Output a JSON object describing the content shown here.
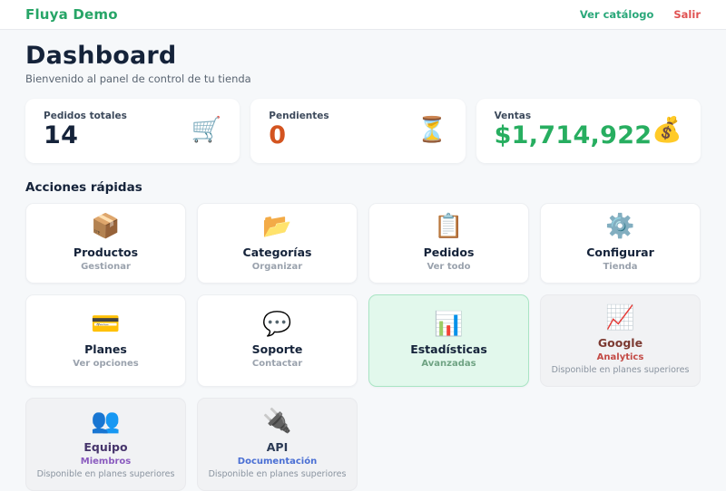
{
  "header": {
    "brand": "Fluya Demo",
    "catalog_label": "Ver catálogo",
    "logout_label": "Salir"
  },
  "page": {
    "title": "Dashboard",
    "subtitle": "Bienvenido al panel de control de tu tienda"
  },
  "stats": [
    {
      "label": "Pedidos totales",
      "value": "14",
      "value_color": "#15233a",
      "icon": "shopping-cart-icon",
      "emoji": "🛒"
    },
    {
      "label": "Pendientes",
      "value": "0",
      "value_color": "#d35420",
      "icon": "hourglass-icon",
      "emoji": "⏳"
    },
    {
      "label": "Ventas",
      "value": "$1,714,922",
      "value_color": "#27ae60",
      "icon": "money-bag-icon",
      "emoji": "💰"
    }
  ],
  "quick_actions": {
    "heading": "Acciones rápidas",
    "cards": [
      {
        "title": "Productos",
        "subtitle": "Gestionar",
        "icon": "package-icon",
        "emoji": "📦",
        "state": "normal"
      },
      {
        "title": "Categorías",
        "subtitle": "Organizar",
        "icon": "open-folder-icon",
        "emoji": "📂",
        "state": "normal"
      },
      {
        "title": "Pedidos",
        "subtitle": "Ver todo",
        "icon": "clipboard-icon",
        "emoji": "📋",
        "state": "normal"
      },
      {
        "title": "Configurar",
        "subtitle": "Tienda",
        "icon": "gear-icon",
        "emoji": "⚙️",
        "state": "normal"
      },
      {
        "title": "Planes",
        "subtitle": "Ver opciones",
        "icon": "credit-card-icon",
        "emoji": "💳",
        "state": "normal"
      },
      {
        "title": "Soporte",
        "subtitle": "Contactar",
        "icon": "speech-balloon-icon",
        "emoji": "💬",
        "state": "normal"
      },
      {
        "title": "Estadísticas",
        "subtitle": "Avanzadas",
        "icon": "bar-chart-icon",
        "emoji": "📊",
        "state": "highlighted",
        "subtitle_color": "#6fa383"
      },
      {
        "title": "Google",
        "subtitle": "Analytics",
        "note": "Disponible en planes superiores",
        "icon": "chart-increasing-icon",
        "emoji": "📈",
        "state": "locked",
        "title_color": "#7c3a32",
        "subtitle_color": "#c34a45"
      },
      {
        "title": "Equipo",
        "subtitle": "Miembros",
        "note": "Disponible en planes superiores",
        "icon": "busts-in-silhouette-icon",
        "emoji": "👥",
        "state": "locked",
        "title_color": "#46346b",
        "subtitle_color": "#8a5bbf"
      },
      {
        "title": "API",
        "subtitle": "Documentación",
        "note": "Disponible en planes superiores",
        "icon": "electric-plug-icon",
        "emoji": "🔌",
        "state": "locked",
        "title_color": "#2b3a55",
        "subtitle_color": "#4a6fd4"
      }
    ]
  },
  "colors": {
    "brand_green": "#27a567",
    "catalog_link": "#2aa87a",
    "logout_red": "#e05252",
    "page_background": "#f6f8fa",
    "highlight_card_bg": "#e2f8ec",
    "highlight_card_border": "#a9e5c4",
    "locked_card_bg": "#f1f2f4"
  }
}
